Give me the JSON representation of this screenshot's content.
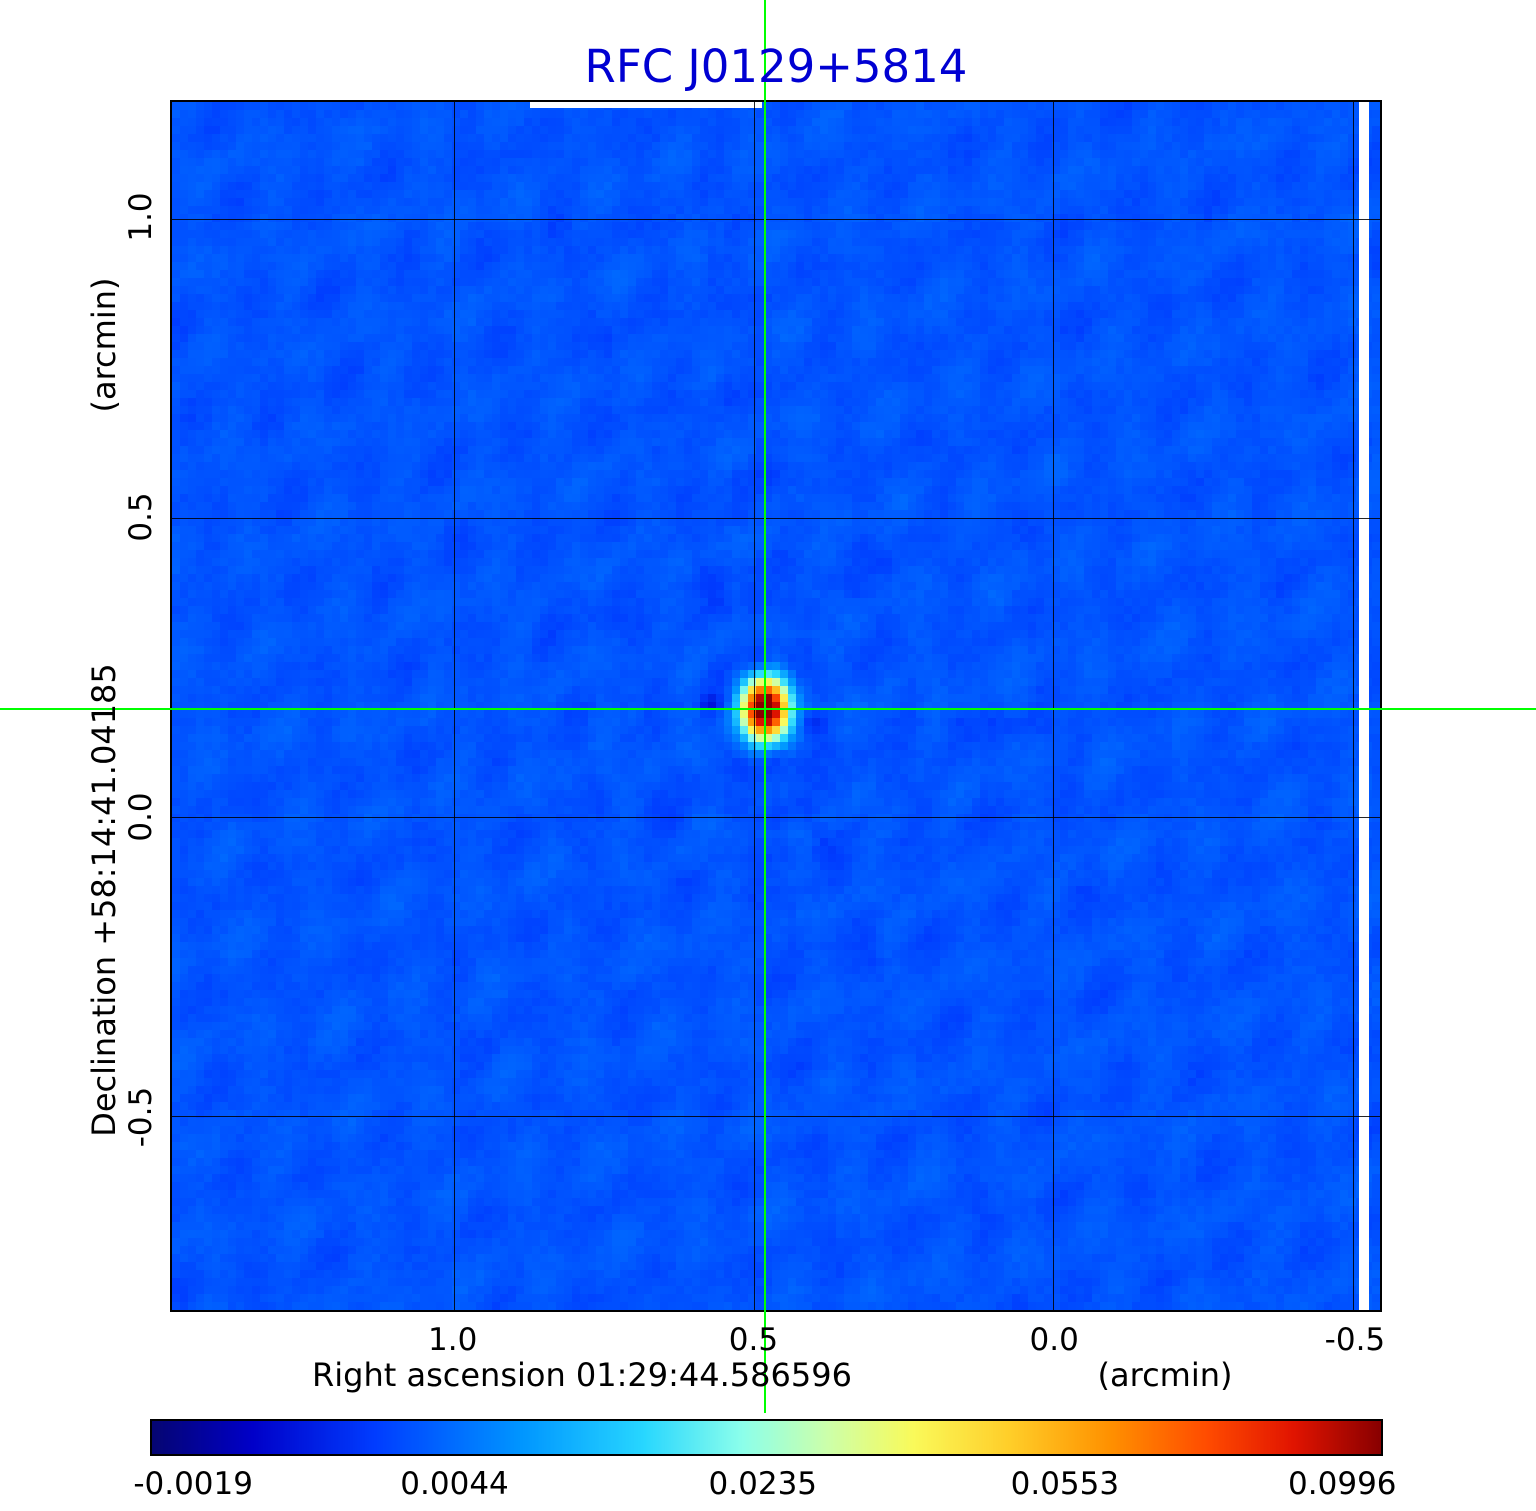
{
  "title": "RFC J0129+5814",
  "title_color": "#0000d2",
  "axes": {
    "y_unit": "(arcmin)",
    "y_label": "Declination  +58:14:41.04185",
    "x_label": "Right ascension  01:29:44.586596",
    "x_unit": "(arcmin)",
    "x_ticks": [
      "1.0",
      "0.5",
      "0.0",
      "-0.5"
    ],
    "y_ticks": [
      "1.0",
      "0.5",
      "0.0",
      "-0.5"
    ]
  },
  "colorbar": {
    "tick_labels": [
      "-0.0019",
      "0.0044",
      "0.0235",
      "0.0553",
      "0.0996"
    ],
    "tick_positions": [
      0.035,
      0.247,
      0.497,
      0.742,
      0.967
    ]
  },
  "chart_data": {
    "type": "heatmap",
    "title": "RFC J0129+5814",
    "xlabel": "Right ascension 01:29:44.586596 (arcmin)",
    "ylabel": "Declination +58:14:41.04185 (arcmin)",
    "x_range_arcmin": [
      1.47,
      -0.545
    ],
    "y_range_arcmin": [
      1.195,
      -0.825
    ],
    "x_tick_values": [
      1.0,
      0.5,
      0.0,
      -0.5
    ],
    "y_tick_values": [
      1.0,
      0.5,
      0.0,
      -0.5
    ],
    "intensity_scale_ticks": [
      -0.0019,
      0.0044,
      0.0235,
      0.0553,
      0.0996
    ],
    "peak_intensity": 0.0996,
    "background_level": 0.002,
    "source_position_arcmin": {
      "x": 0.48,
      "y": 0.18
    },
    "crosshair_color": "#00ff00",
    "colormap": "rainbow",
    "grid": true,
    "legend": "colorbar-bottom"
  }
}
